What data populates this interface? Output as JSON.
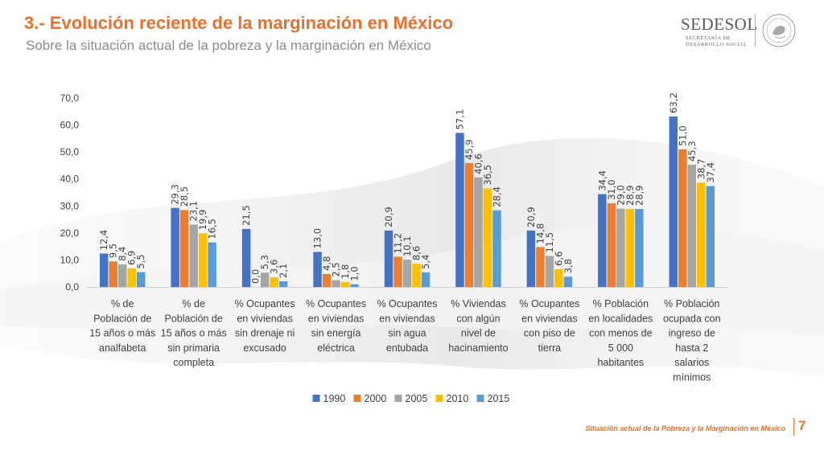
{
  "slide": {
    "title": "3.- Evolución reciente de la marginación en México",
    "subtitle": "Sobre la situación actual de la pobreza y la marginación en México",
    "footer": "Situación actual de la Pobreza y la Marginación en México",
    "page_number": "7"
  },
  "logo": {
    "name": "SEDESOL",
    "subtitle_line1": "SECRETARÍA DE",
    "subtitle_line2": "DESARROLLO SOCIAL"
  },
  "colors": {
    "accent": "#e8702a",
    "series": [
      "#4472c4",
      "#ed7d31",
      "#a5a5a5",
      "#ffc000",
      "#5b9bd5"
    ]
  },
  "chart_data": {
    "type": "bar",
    "title": "",
    "xlabel": "",
    "ylabel": "",
    "ylim": [
      0,
      70
    ],
    "yticks": [
      "0,0",
      "10,0",
      "20,0",
      "30,0",
      "40,0",
      "50,0",
      "60,0",
      "70,0"
    ],
    "grid": false,
    "legend_position": "bottom",
    "categories": [
      [
        "% de",
        "Población de",
        "15 años o más",
        "analfabeta"
      ],
      [
        "% de",
        "Población de",
        "15 años o más",
        "sin primaria",
        "completa"
      ],
      [
        "% Ocupantes",
        "en viviendas",
        "sin drenaje ni",
        "excusado"
      ],
      [
        "% Ocupantes",
        "en viviendas",
        "sin energía",
        "eléctrica"
      ],
      [
        "% Ocupantes",
        "en viviendas",
        "sin agua",
        "entubada"
      ],
      [
        "% Viviendas",
        "con algún",
        "nivel de",
        "hacinamiento"
      ],
      [
        "% Ocupantes",
        "en viviendas",
        "con piso de",
        "tierra"
      ],
      [
        "% Población",
        "en localidades",
        "con menos de",
        "5 000",
        "habitantes"
      ],
      [
        "% Población",
        "ocupada con",
        "ingreso de",
        "hasta 2",
        "salarios",
        "mínimos"
      ]
    ],
    "series": [
      {
        "name": "1990",
        "values": [
          12.4,
          29.3,
          21.5,
          13.0,
          20.9,
          57.1,
          20.9,
          34.4,
          63.2
        ],
        "labels": [
          "12,4",
          "29,3",
          "21,5",
          "13,0",
          "20,9",
          "57,1",
          "20,9",
          "34,4",
          "63,2"
        ]
      },
      {
        "name": "2000",
        "values": [
          9.5,
          28.5,
          0.0,
          4.8,
          11.2,
          45.9,
          14.8,
          31.0,
          51.0
        ],
        "labels": [
          "9,5",
          "28,5",
          "0,0",
          "4,8",
          "11,2",
          "45,9",
          "14,8",
          "31,0",
          "51,0"
        ]
      },
      {
        "name": "2005",
        "values": [
          8.4,
          23.1,
          5.3,
          2.5,
          10.1,
          40.6,
          11.5,
          29.0,
          45.3
        ],
        "labels": [
          "8,4",
          "23,1",
          "5,3",
          "2,5",
          "10,1",
          "40,6",
          "11,5",
          "29,0",
          "45,3"
        ]
      },
      {
        "name": "2010",
        "values": [
          6.9,
          19.9,
          3.6,
          1.8,
          8.6,
          36.5,
          6.6,
          28.9,
          38.7
        ],
        "labels": [
          "6,9",
          "19,9",
          "3,6",
          "1,8",
          "8,6",
          "36,5",
          "6,6",
          "28,9",
          "38,7"
        ]
      },
      {
        "name": "2015",
        "values": [
          5.5,
          16.5,
          2.1,
          1.0,
          5.4,
          28.4,
          3.8,
          28.9,
          37.4
        ],
        "labels": [
          "5,5",
          "16,5",
          "2,1",
          "1,0",
          "5,4",
          "28,4",
          "3,8",
          "28,9",
          "37,4"
        ]
      }
    ]
  }
}
